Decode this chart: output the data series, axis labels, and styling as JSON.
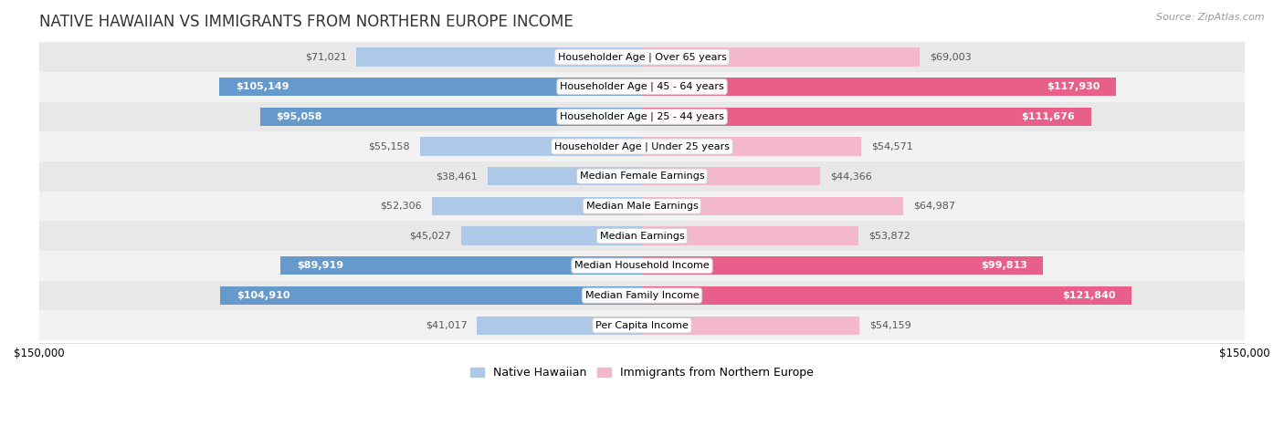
{
  "title": "NATIVE HAWAIIAN VS IMMIGRANTS FROM NORTHERN EUROPE INCOME",
  "source": "Source: ZipAtlas.com",
  "categories": [
    "Per Capita Income",
    "Median Family Income",
    "Median Household Income",
    "Median Earnings",
    "Median Male Earnings",
    "Median Female Earnings",
    "Householder Age | Under 25 years",
    "Householder Age | 25 - 44 years",
    "Householder Age | 45 - 64 years",
    "Householder Age | Over 65 years"
  ],
  "native_hawaiian": [
    41017,
    104910,
    89919,
    45027,
    52306,
    38461,
    55158,
    95058,
    105149,
    71021
  ],
  "northern_europe": [
    54159,
    121840,
    99813,
    53872,
    64987,
    44366,
    54571,
    111676,
    117930,
    69003
  ],
  "native_color_light": "#aec8e8",
  "native_color_dark": "#6699cc",
  "northern_color_light": "#f4b8cc",
  "northern_color_dark": "#e8608a",
  "row_bg_odd": "#f2f2f2",
  "row_bg_even": "#e8e8e8",
  "max_val": 150000,
  "label_fontsize": 8.0,
  "title_fontsize": 12,
  "tick_fontsize": 8.5,
  "legend_fontsize": 9,
  "inside_threshold": 75000
}
